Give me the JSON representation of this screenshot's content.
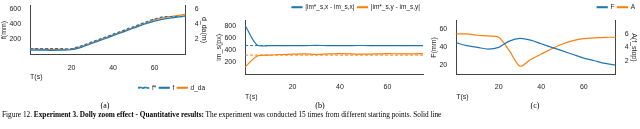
{
  "chart_data": [
    {
      "type": "line",
      "panel": "(a)",
      "x_label": "T(s)",
      "y_label": "f(mm)",
      "y2_label": "d_da(m)",
      "x": [
        0,
        5,
        10,
        15,
        20,
        25,
        30,
        35,
        40,
        45,
        50,
        55,
        60,
        65,
        70,
        75
      ],
      "xlim": [
        0,
        75
      ],
      "xticks": [
        20,
        40,
        60
      ],
      "ylim": [
        0,
        650
      ],
      "yticks": [
        200,
        400,
        600
      ],
      "y2lim": [
        0,
        6.5
      ],
      "y2ticks": [
        2,
        4,
        6
      ],
      "legend": "lower right",
      "grid": false,
      "series": [
        {
          "name": "f*",
          "color": "#1f77b4",
          "line_style": "dashed",
          "values": [
            80,
            80,
            80,
            80,
            80,
            120,
            170,
            220,
            270,
            320,
            370,
            420,
            470,
            500,
            500,
            500
          ]
        },
        {
          "name": "f",
          "color": "#1f77b4",
          "line_style": "solid",
          "values": [
            60,
            60,
            58,
            60,
            65,
            100,
            150,
            200,
            250,
            300,
            350,
            400,
            440,
            470,
            490,
            510
          ]
        },
        {
          "name": "d_da",
          "color": "#ff7f0e",
          "line_style": "solid",
          "axis": "y2",
          "values": [
            0.8,
            0.7,
            0.7,
            0.7,
            0.75,
            1.1,
            1.6,
            2.1,
            2.6,
            3.1,
            3.6,
            4.1,
            4.6,
            4.9,
            5.1,
            5.3
          ]
        }
      ]
    },
    {
      "type": "line",
      "panel": "(b)",
      "x_label": "T(s)",
      "y_label": "im_s(px)",
      "x": [
        0,
        5,
        10,
        15,
        20,
        25,
        30,
        35,
        40,
        45,
        50,
        55,
        60,
        65,
        70,
        75
      ],
      "xlim": [
        0,
        75
      ],
      "xticks": [
        20,
        40,
        60
      ],
      "ylim": [
        0,
        900
      ],
      "yticks": [
        200,
        400,
        600,
        800
      ],
      "legend": "upper right",
      "grid": false,
      "series": [
        {
          "name": "|im*_s,x - im_s,x|",
          "color": "#1f77b4",
          "line_style": "solid",
          "reference": 480,
          "values": [
            820,
            490,
            480,
            480,
            478,
            480,
            482,
            480,
            479,
            480,
            481,
            480,
            480,
            479,
            480,
            480
          ]
        },
        {
          "name": "|im*_s,y - im_s,y|",
          "color": "#ff7f0e",
          "line_style": "solid",
          "reference": 320,
          "values": [
            120,
            300,
            320,
            330,
            335,
            340,
            330,
            340,
            345,
            340,
            335,
            340,
            345,
            340,
            340,
            345
          ]
        }
      ]
    },
    {
      "type": "line",
      "panel": "(c)",
      "x_label": "T(s)",
      "y_label": "F(mm)",
      "y2_label": "A(f_stop)",
      "x": [
        0,
        5,
        10,
        15,
        20,
        25,
        30,
        35,
        40,
        45,
        50,
        55,
        60,
        65,
        70,
        75
      ],
      "xlim": [
        0,
        75
      ],
      "xticks": [
        20,
        40,
        60
      ],
      "ylim": [
        10,
        70
      ],
      "yticks": [
        20,
        40,
        60
      ],
      "y2lim": [
        0,
        8
      ],
      "y2ticks": [
        2,
        4,
        6
      ],
      "legend": "upper right",
      "grid": false,
      "series": [
        {
          "name": "F",
          "color": "#1f77b4",
          "line_style": "solid",
          "values": [
            45,
            42,
            40,
            38,
            40,
            47,
            50,
            48,
            44,
            40,
            36,
            32,
            28,
            25,
            22,
            20
          ]
        },
        {
          "name": "A",
          "color": "#ff7f0e",
          "line_style": "solid",
          "axis": "y2",
          "values": [
            6.0,
            6.0,
            5.8,
            5.7,
            5.5,
            3.5,
            1.2,
            2.2,
            3.0,
            3.8,
            4.5,
            5.0,
            5.3,
            5.4,
            5.5,
            5.5
          ]
        }
      ]
    }
  ],
  "caption": {
    "label": "Figure 12.",
    "bold": "Experiment 3. Dolly zoom effect - Quantitative results:",
    "text": "The experiment was conducted 15 times from different starting points. Solid line"
  }
}
